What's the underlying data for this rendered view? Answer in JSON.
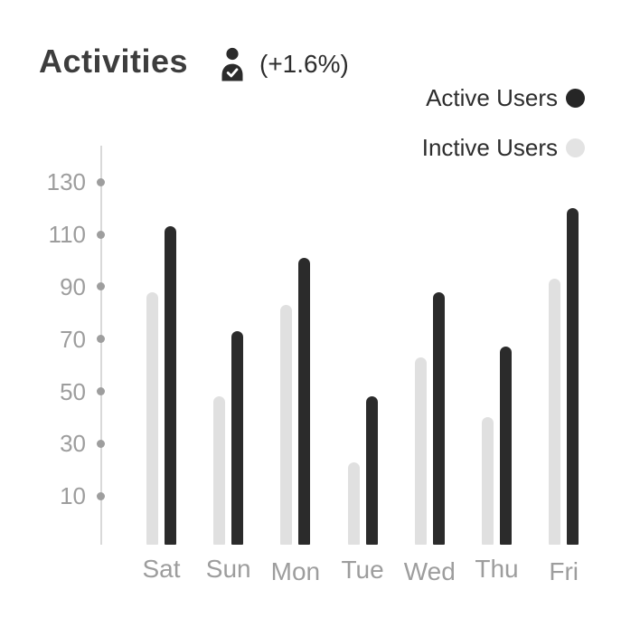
{
  "header": {
    "title": "Activities",
    "change_label": "(+1.6%)",
    "icon": "person-check-icon"
  },
  "legend": [
    {
      "label": "Active Users",
      "color": "#262626"
    },
    {
      "label": "Inctive Users",
      "color": "#e3e3e3"
    }
  ],
  "chart_data": {
    "type": "bar",
    "title": "Activities",
    "categories": [
      "Sat",
      "Sun",
      "Mon",
      "Tue",
      "Wed",
      "Thu",
      "Fri"
    ],
    "series": [
      {
        "name": "Active Users",
        "color": "#2b2b2b",
        "values": [
          113,
          73,
          101,
          48,
          88,
          67,
          120
        ]
      },
      {
        "name": "Inctive Users",
        "color": "#e0e0e0",
        "values": [
          88,
          48,
          83,
          23,
          63,
          40,
          93
        ]
      }
    ],
    "y_ticks": [
      130,
      110,
      90,
      70,
      50,
      30,
      10
    ],
    "ylim": [
      0,
      140
    ],
    "xlabel": "",
    "ylabel": "",
    "grid": false,
    "legend_position": "top-right",
    "bar_order_left_to_right": [
      "Inctive Users",
      "Active Users"
    ]
  },
  "colors": {
    "title_text": "#3d3d3d",
    "body_text": "#2d2d2d",
    "axis_line": "#d9d9d9",
    "axis_tick_dot": "#9e9e9e",
    "axis_label_text": "#9d9d9d",
    "active_bar": "#2b2b2b",
    "inactive_bar": "#e0e0e0",
    "background": "#ffffff"
  }
}
